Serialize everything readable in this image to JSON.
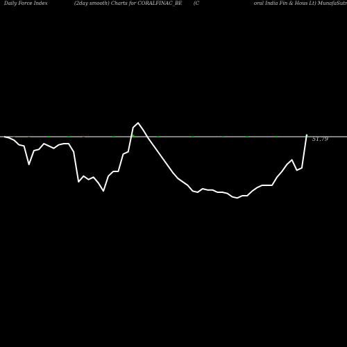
{
  "header": {
    "left": "Daily Force  Index",
    "middle": "(2day smooth) Charts for CORALFINAC_BE",
    "paren": "(C",
    "right": "oral India  Fin  & Hous Lt) MunafaSutra.com"
  },
  "colors": {
    "background": "#000000",
    "line": "#ffffff",
    "zero_line": "#ffffff",
    "positive_bar": "#00c000",
    "negative_bar": "#c00000"
  },
  "chart_data": {
    "type": "line",
    "title": "",
    "xlabel": "",
    "ylabel": "",
    "grid": false,
    "legend": "none",
    "value_label": "51.79",
    "ylim": [
      -75,
      15
    ],
    "y": [
      0,
      -1,
      -3,
      -7,
      -8,
      -24,
      -12,
      -11,
      -6,
      -8,
      -10,
      -7,
      -6,
      -6,
      -13,
      -39,
      -34,
      -37,
      -35,
      -40,
      -47,
      -34,
      -30,
      -30,
      -15,
      -13,
      8,
      12,
      6,
      -1,
      -7,
      -13,
      -19,
      -25,
      -31,
      -36,
      -39,
      -42,
      -47,
      -48,
      -45,
      -46,
      -46,
      -48,
      -48,
      -49,
      -52,
      -53,
      -51,
      -51,
      -47,
      -44,
      -42,
      -42,
      -42,
      -35,
      -30,
      -24,
      -20,
      -29,
      -27,
      2
    ],
    "bars": [
      {
        "i": 2,
        "v": 0.6,
        "sign": "neg"
      },
      {
        "i": 5,
        "v": 0.8,
        "sign": "neg"
      },
      {
        "i": 9,
        "v": 0.6,
        "sign": "pos"
      },
      {
        "i": 13,
        "v": 0.5,
        "sign": "pos"
      },
      {
        "i": 16,
        "v": 0.7,
        "sign": "neg"
      },
      {
        "i": 22,
        "v": 0.5,
        "sign": "pos"
      },
      {
        "i": 26,
        "v": 1.6,
        "sign": "pos"
      },
      {
        "i": 31,
        "v": 0.5,
        "sign": "pos"
      },
      {
        "i": 38,
        "v": 0.5,
        "sign": "pos"
      },
      {
        "i": 44,
        "v": 0.5,
        "sign": "pos"
      },
      {
        "i": 49,
        "v": 0.5,
        "sign": "pos"
      },
      {
        "i": 55,
        "v": 0.6,
        "sign": "pos"
      },
      {
        "i": 61,
        "v": 1.8,
        "sign": "pos"
      }
    ]
  }
}
